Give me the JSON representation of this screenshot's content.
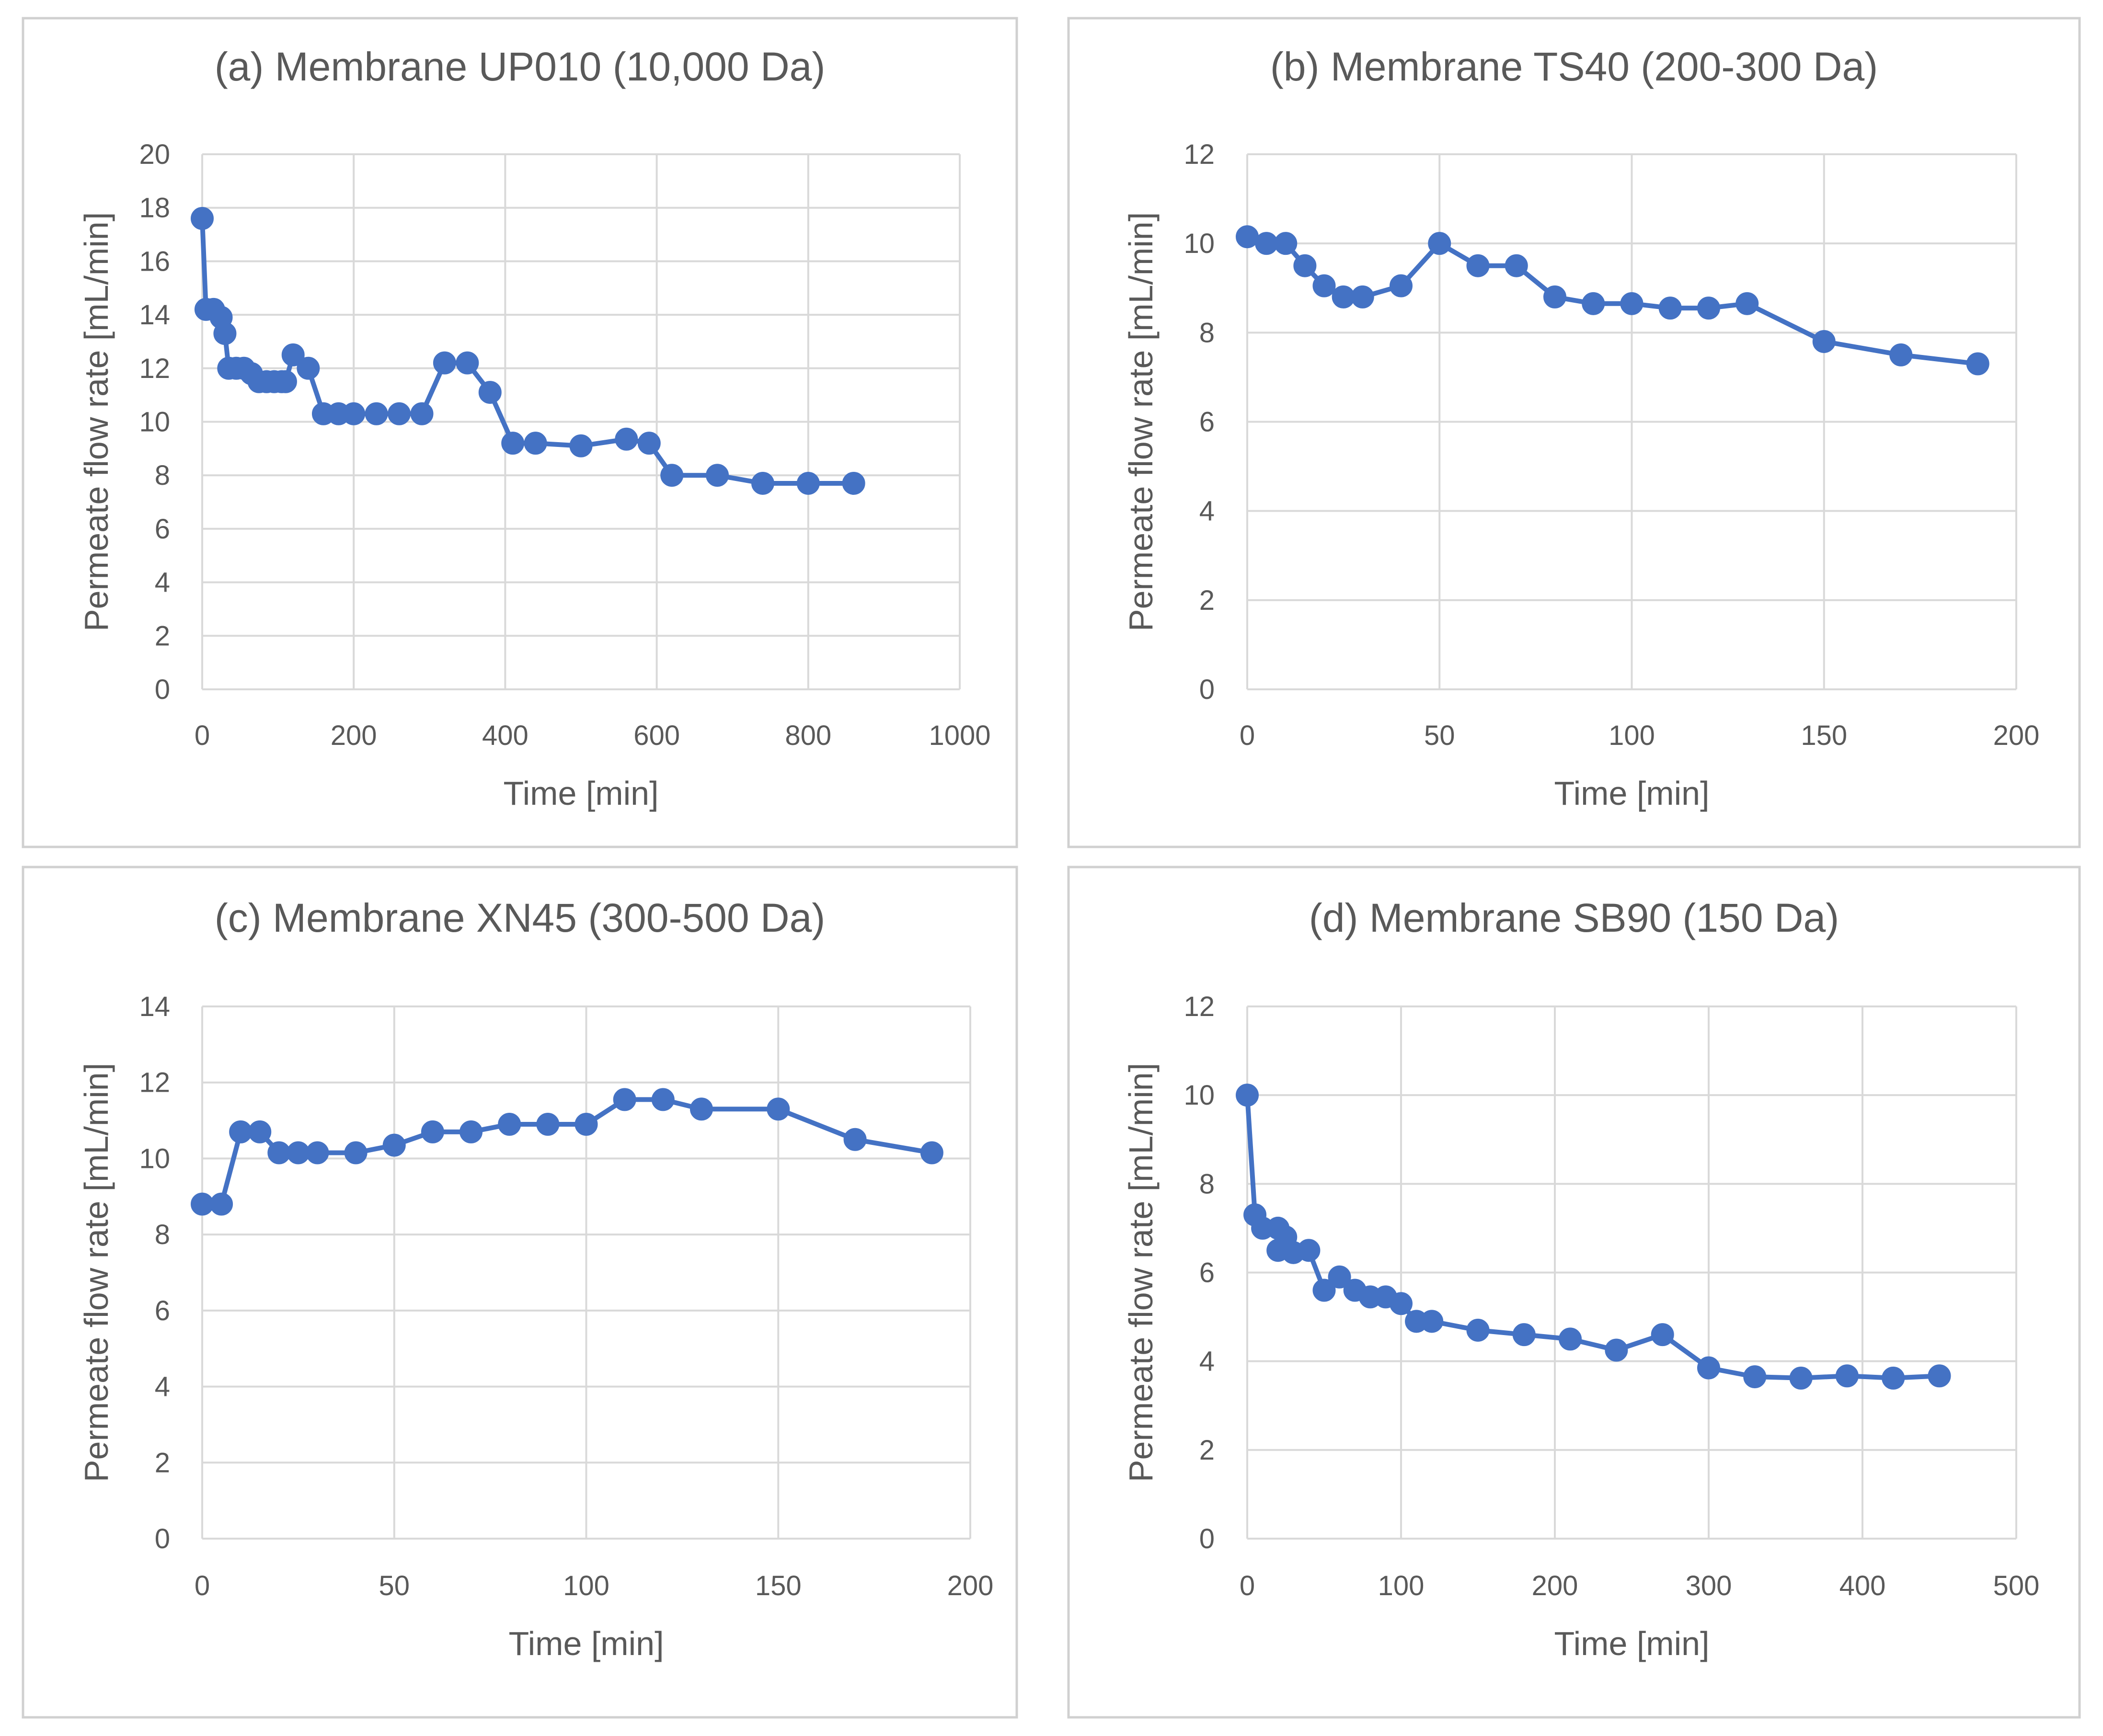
{
  "chart_data": [
    {
      "type": "line",
      "title": "(a) Membrane UP010 (10,000 Da)",
      "xlabel": "Time [min]",
      "ylabel": "Permeate flow rate [mL/min]",
      "xlim": [
        0,
        1000
      ],
      "ylim": [
        0,
        20
      ],
      "x_ticks": [
        "0",
        "200",
        "400",
        "600",
        "800",
        "1000"
      ],
      "y_ticks": [
        "0",
        "2",
        "4",
        "6",
        "8",
        "10",
        "12",
        "14",
        "16",
        "18",
        "20"
      ],
      "grid": true,
      "legend": "none",
      "series": [
        {
          "name": "UP010",
          "x": [
            0,
            5,
            15,
            25,
            30,
            35,
            45,
            55,
            65,
            75,
            85,
            95,
            105,
            110,
            120,
            140,
            160,
            180,
            200,
            230,
            260,
            290,
            320,
            350,
            380,
            410,
            440,
            500,
            560,
            590,
            620,
            680,
            740,
            800,
            860
          ],
          "values": [
            17.6,
            14.2,
            14.2,
            13.9,
            13.3,
            12.0,
            12.0,
            12.0,
            11.8,
            11.5,
            11.5,
            11.5,
            11.5,
            11.5,
            12.5,
            12.0,
            10.3,
            10.3,
            10.3,
            10.3,
            10.3,
            10.3,
            12.2,
            12.2,
            11.1,
            9.2,
            9.2,
            9.1,
            9.35,
            9.2,
            8.0,
            8.0,
            7.7,
            7.7,
            7.7
          ]
        }
      ]
    },
    {
      "type": "line",
      "title": "(b) Membrane TS40 (200-300 Da)",
      "xlabel": "Time [min]",
      "ylabel": "Permeate flow rate [mL/min]",
      "xlim": [
        0,
        200
      ],
      "ylim": [
        0,
        12
      ],
      "x_ticks": [
        "0",
        "50",
        "100",
        "150",
        "200"
      ],
      "y_ticks": [
        "0",
        "2",
        "4",
        "6",
        "8",
        "10",
        "12"
      ],
      "grid": true,
      "legend": "none",
      "series": [
        {
          "name": "TS40",
          "x": [
            0,
            5,
            10,
            15,
            20,
            25,
            30,
            40,
            50,
            60,
            70,
            80,
            90,
            100,
            110,
            120,
            130,
            150,
            170,
            190
          ],
          "values": [
            10.15,
            10.0,
            10.0,
            9.5,
            9.05,
            8.8,
            8.8,
            9.05,
            10.0,
            9.5,
            9.5,
            8.8,
            8.65,
            8.65,
            8.55,
            8.55,
            8.65,
            7.8,
            7.5,
            7.3
          ]
        }
      ]
    },
    {
      "type": "line",
      "title": "(c) Membrane XN45 (300-500 Da)",
      "xlabel": "Time [min]",
      "ylabel": "Permeate flow rate [mL/min]",
      "xlim": [
        0,
        200
      ],
      "ylim": [
        0,
        14
      ],
      "x_ticks": [
        "0",
        "50",
        "100",
        "150",
        "200"
      ],
      "y_ticks": [
        "0",
        "2",
        "4",
        "6",
        "8",
        "10",
        "12",
        "14"
      ],
      "grid": true,
      "legend": "none",
      "series": [
        {
          "name": "XN45",
          "x": [
            0,
            5,
            10,
            15,
            20,
            25,
            30,
            40,
            50,
            60,
            70,
            80,
            90,
            100,
            110,
            120,
            130,
            150,
            170,
            190
          ],
          "values": [
            8.8,
            8.8,
            10.7,
            10.7,
            10.15,
            10.15,
            10.15,
            10.15,
            10.35,
            10.7,
            10.7,
            10.9,
            10.9,
            10.9,
            11.55,
            11.55,
            11.3,
            11.3,
            10.5,
            10.15
          ]
        }
      ]
    },
    {
      "type": "line",
      "title": "(d) Membrane SB90 (150 Da)",
      "xlabel": "Time [min]",
      "ylabel": "Permeate flow rate [mL/min]",
      "xlim": [
        0,
        500
      ],
      "ylim": [
        0,
        12
      ],
      "x_ticks": [
        "0",
        "100",
        "200",
        "300",
        "400",
        "500"
      ],
      "y_ticks": [
        "0",
        "2",
        "4",
        "6",
        "8",
        "10",
        "12"
      ],
      "grid": true,
      "legend": "none",
      "series": [
        {
          "name": "SB90",
          "x": [
            0,
            5,
            10,
            20,
            20,
            25,
            30,
            40,
            50,
            60,
            70,
            80,
            90,
            100,
            110,
            120,
            150,
            180,
            210,
            240,
            270,
            300,
            330,
            360,
            390,
            420,
            450
          ],
          "values": [
            10.0,
            7.3,
            7.0,
            7.0,
            6.5,
            6.8,
            6.45,
            6.5,
            5.6,
            5.9,
            5.6,
            5.45,
            5.45,
            5.3,
            4.9,
            4.9,
            4.7,
            4.6,
            4.5,
            4.25,
            4.6,
            3.85,
            3.65,
            3.62,
            3.67,
            3.62,
            3.67
          ]
        }
      ]
    }
  ],
  "colors": {
    "series": "#4472C4",
    "grid": "#d9d9d9",
    "text": "#595959",
    "frame": "#d0d0d0"
  }
}
